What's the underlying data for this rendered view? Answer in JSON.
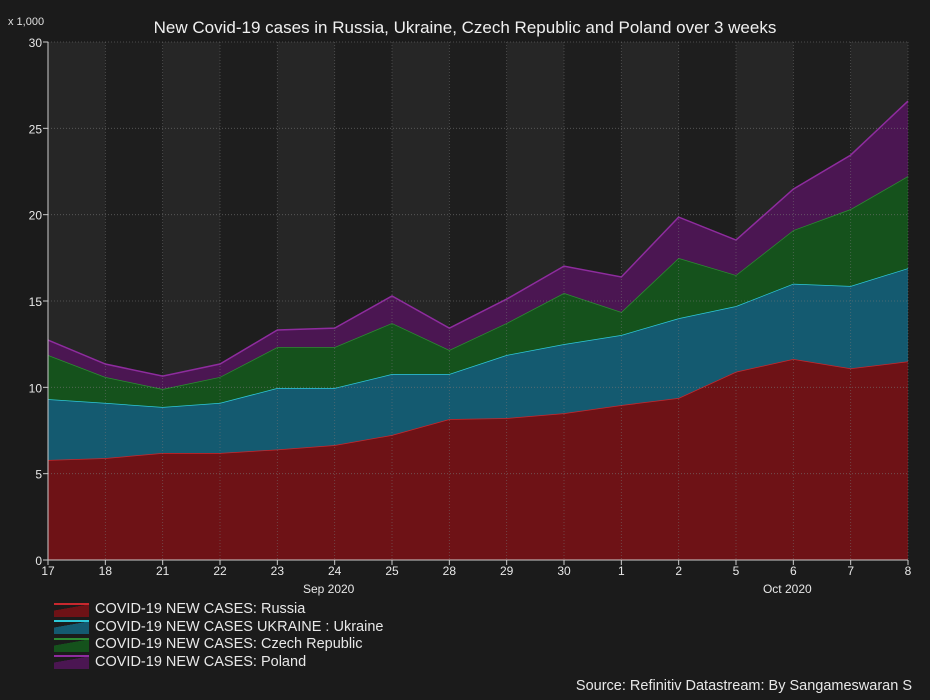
{
  "chart_data": {
    "type": "area",
    "stacked": true,
    "title": "New Covid-19 cases in Russia, Ukraine, Czech Republic and Poland over 3 weeks",
    "y_unit_label": "x 1,000",
    "ylim": [
      0,
      30
    ],
    "yticks": [
      "0",
      "5",
      "10",
      "15",
      "20",
      "25",
      "30"
    ],
    "categories": [
      "17",
      "18",
      "21",
      "22",
      "23",
      "24",
      "25",
      "28",
      "29",
      "30",
      "1",
      "2",
      "5",
      "6",
      "7",
      "8"
    ],
    "month_labels": [
      {
        "label": "Sep 2020",
        "at": "24"
      },
      {
        "label": "Oct 2020",
        "at": "6"
      }
    ],
    "grid": true,
    "legend_position": "bottom-left",
    "series": [
      {
        "name": "COVID-19 NEW CASES: Russia",
        "fill": "#6e1216",
        "line": "#c8282e",
        "values": [
          5.79,
          5.9,
          6.2,
          6.2,
          6.4,
          6.65,
          7.24,
          8.16,
          8.22,
          8.5,
          8.97,
          9.38,
          10.9,
          11.64,
          11.1,
          11.5
        ]
      },
      {
        "name": "COVID-19 NEW CASES UKRAINE : Ukraine",
        "fill": "#145a70",
        "line": "#2ec8d8",
        "values": [
          3.53,
          3.2,
          2.66,
          2.9,
          3.56,
          3.31,
          3.53,
          2.61,
          3.65,
          4.0,
          4.06,
          4.62,
          3.8,
          4.36,
          4.77,
          5.4
        ]
      },
      {
        "name": "COVID-19 NEW CASES: Czech Republic",
        "fill": "#15521c",
        "line": "#2c8c32",
        "values": [
          2.55,
          1.5,
          1.04,
          1.5,
          2.37,
          2.37,
          2.95,
          1.39,
          1.85,
          2.96,
          1.33,
          3.49,
          1.8,
          3.1,
          4.45,
          5.33
        ]
      },
      {
        "name": "COVID-19 NEW CASES: Poland",
        "fill": "#4b1652",
        "line": "#8e2c9e",
        "values": [
          0.87,
          0.75,
          0.75,
          0.75,
          0.99,
          1.1,
          1.57,
          1.27,
          1.39,
          1.56,
          2.03,
          2.37,
          2.03,
          2.38,
          3.13,
          4.35
        ]
      }
    ],
    "source": "Source: Refinitiv Datastream: By Sangameswaran S"
  }
}
